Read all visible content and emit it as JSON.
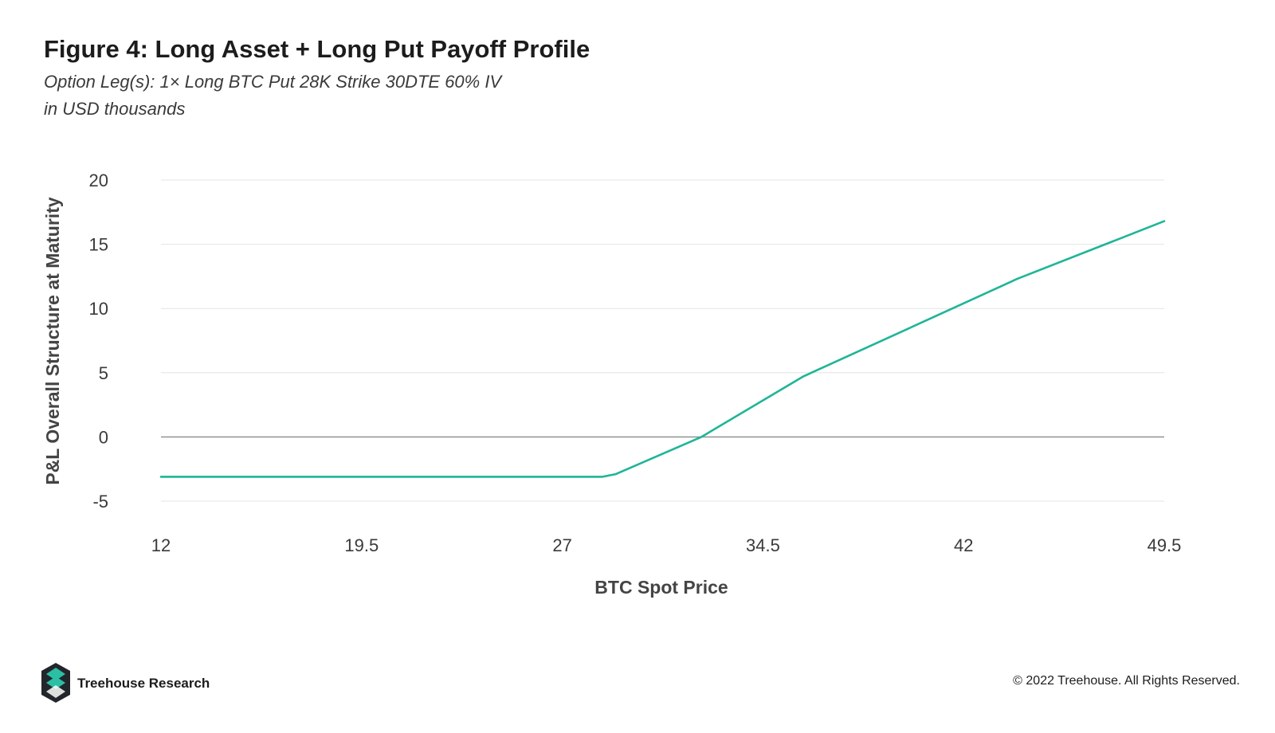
{
  "header": {
    "title": "Figure 4: Long Asset + Long Put Payoff Profile",
    "subtitle_line1": "Option Leg(s): 1× Long BTC Put 28K Strike 30DTE 60% IV",
    "subtitle_line2": "in USD thousands"
  },
  "footer": {
    "brand_name": "Treehouse Research",
    "copyright": "© 2022 Treehouse. All Rights Reserved.",
    "logo_icon": "treehouse-logo-icon"
  },
  "colors": {
    "line": "#1fb597",
    "gridline": "#e4e4e4",
    "zero_line": "#8a8a8a",
    "logo_teal": "#2bbfa5",
    "logo_dark": "#22262b"
  },
  "chart_data": {
    "type": "line",
    "xlabel": "BTC Spot Price",
    "ylabel": "P&L Overall Structure at Maturity",
    "xlim": [
      12,
      49.5
    ],
    "ylim": [
      -5,
      20
    ],
    "x_ticks": [
      12,
      19.5,
      27,
      34.5,
      42,
      49.5
    ],
    "x_tick_labels": [
      "12",
      "19.5",
      "27",
      "34.5",
      "42",
      "49.5"
    ],
    "y_ticks": [
      -5,
      0,
      5,
      10,
      15,
      20
    ],
    "y_tick_labels": [
      "-5",
      "0",
      "5",
      "10",
      "15",
      "20"
    ],
    "grid": true,
    "legend": "none",
    "series": [
      {
        "x": [
          12,
          28.5,
          29,
          32.2,
          36,
          40,
          44,
          49.5
        ],
        "y": [
          -3.1,
          -3.1,
          -2.9,
          0,
          4.7,
          8.5,
          12.3,
          16.8
        ]
      }
    ]
  }
}
